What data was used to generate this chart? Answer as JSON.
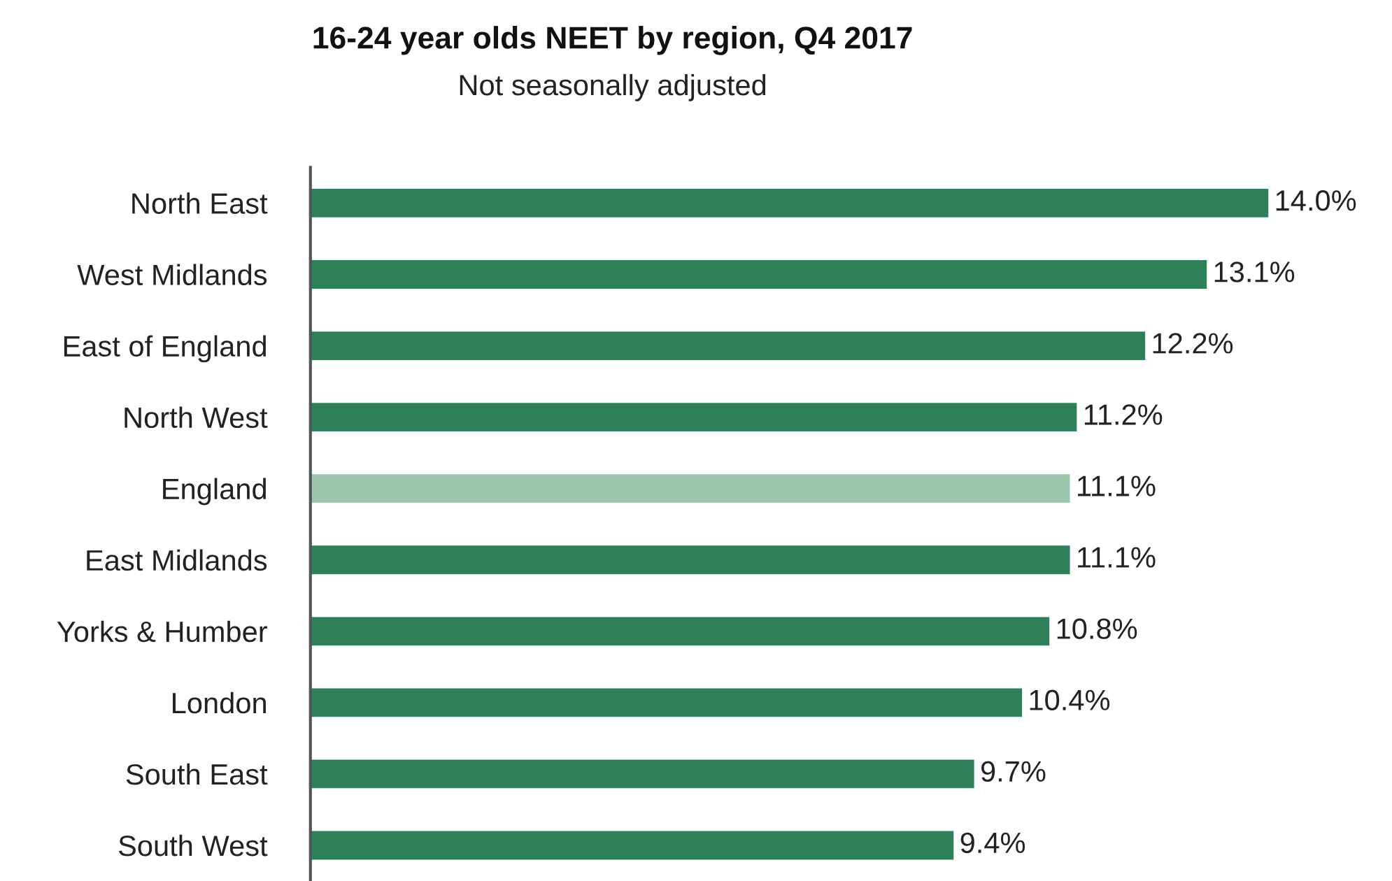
{
  "chart_data": {
    "type": "bar",
    "orientation": "horizontal",
    "title": "16-24 year olds NEET by region, Q4 2017",
    "subtitle": "Not seasonally adjusted",
    "categories": [
      "North East",
      "West Midlands",
      "East of England",
      "North West",
      "England",
      "East Midlands",
      "Yorks & Humber",
      "London",
      "South East",
      "South West"
    ],
    "values": [
      14.0,
      13.1,
      12.2,
      11.2,
      11.1,
      11.1,
      10.8,
      10.4,
      9.7,
      9.4
    ],
    "colors": [
      "#2e8058",
      "#2e8058",
      "#2e8058",
      "#2e8058",
      "#9cc7ad",
      "#2e8058",
      "#2e8058",
      "#2e8058",
      "#2e8058",
      "#2e8058"
    ],
    "value_labels": [
      "14.0%",
      "13.1%",
      "12.2%",
      "11.2%",
      "11.1%",
      "11.1%",
      "10.8%",
      "10.4%",
      "9.7%",
      "9.4%"
    ],
    "tick_labels": "y",
    "grid": false,
    "legend": false
  }
}
